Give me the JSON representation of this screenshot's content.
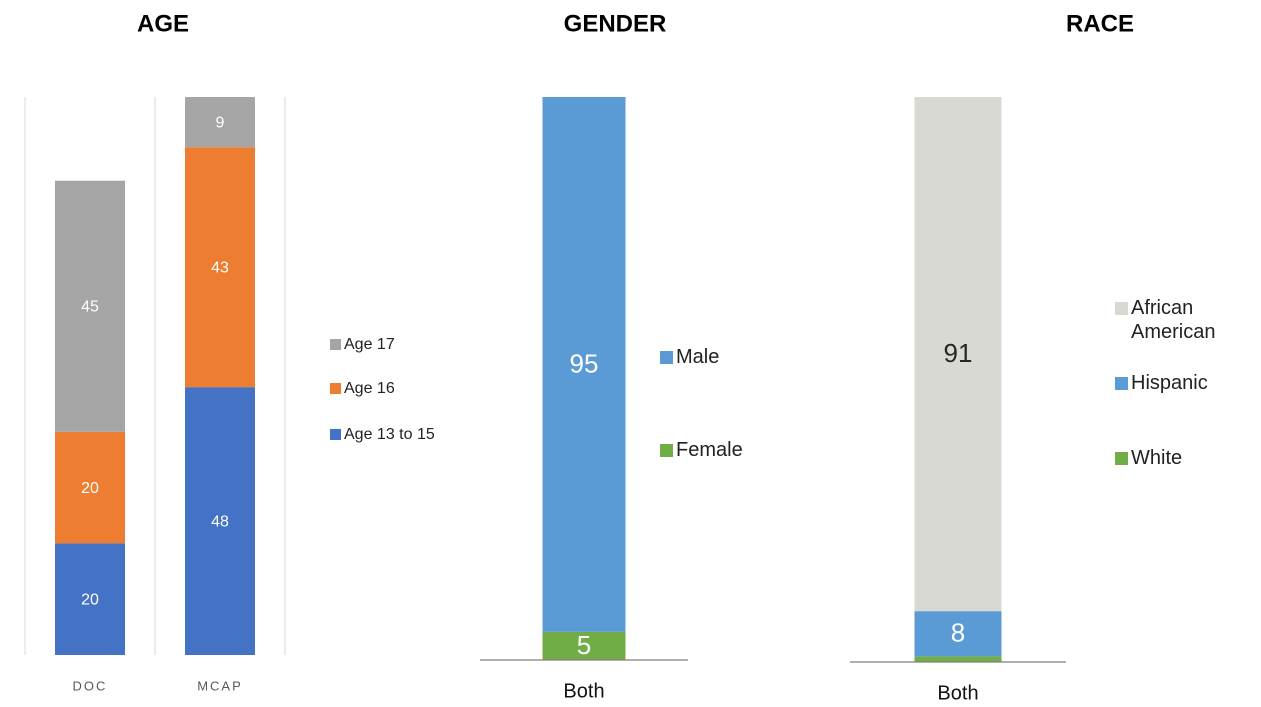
{
  "chart_data": [
    {
      "type": "bar",
      "stacked": true,
      "title": "AGE",
      "categories": [
        "DOC",
        "MCAP"
      ],
      "series": [
        {
          "name": "Age 13 to 15",
          "color": "#4472c4",
          "values": [
            20,
            48
          ]
        },
        {
          "name": "Age 16",
          "color": "#ed7d31",
          "values": [
            20,
            43
          ]
        },
        {
          "name": "Age 17",
          "color": "#a5a5a5",
          "values": [
            45,
            9
          ]
        }
      ],
      "ylim": [
        0,
        100
      ],
      "legend": "right",
      "grid": true
    },
    {
      "type": "bar",
      "stacked": true,
      "title": "GENDER",
      "categories": [
        "Both"
      ],
      "series": [
        {
          "name": "Female",
          "color": "#70ad47",
          "values": [
            5
          ]
        },
        {
          "name": "Male",
          "color": "#5b9bd5",
          "values": [
            95
          ]
        }
      ],
      "ylim": [
        0,
        100
      ],
      "legend": "right",
      "grid": false
    },
    {
      "type": "bar",
      "stacked": true,
      "title": "RACE",
      "categories": [
        "Both"
      ],
      "series": [
        {
          "name": "White",
          "color": "#70ad47",
          "values": [
            1
          ]
        },
        {
          "name": "Hispanic",
          "color": "#5b9bd5",
          "values": [
            8
          ]
        },
        {
          "name": "African American",
          "color": "#d9d9d4",
          "values": [
            91
          ]
        }
      ],
      "ylim": [
        0,
        100
      ],
      "legend": "right",
      "grid": false
    }
  ]
}
